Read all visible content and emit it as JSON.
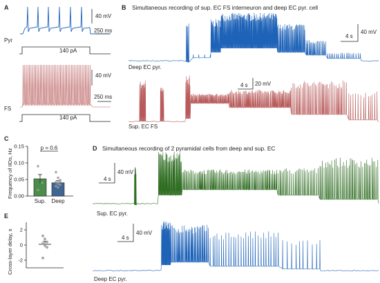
{
  "colors": {
    "blue": "#1f63b8",
    "pink": "#b85a5a",
    "green": "#2f6d22",
    "bar_sup": "#4c8d4c",
    "bar_deep": "#3f6693",
    "dot": "#9a9a9a",
    "axis": "#222222"
  },
  "panels": {
    "A": {
      "letter": "A",
      "pyr_label": "Pyr",
      "fs_label": "FS",
      "stim_pyr": "140 pA",
      "stim_fs": "140 pA",
      "scale_pyr_v": "40 mV",
      "scale_pyr_t": "250 ms",
      "scale_fs_v": "40 mV",
      "scale_fs_t": "250 ms"
    },
    "B": {
      "letter": "B",
      "title": "Simultaneous recording of sup. EC FS interneuron and deep EC pyr. cell",
      "deep_label": "Deep EC pyr.",
      "sup_label": "Sup. EC FS",
      "scale1_v": "40 mV",
      "scale1_t": "4 s",
      "scale2_v": "20 mV",
      "scale2_t": "4 s"
    },
    "C": {
      "letter": "C",
      "ylabel": "Frequency of IIDs, Hz",
      "p_text": "p = 0.6"
    },
    "D": {
      "letter": "D",
      "title": "Simultaneous recording of 2 pyramidal cells from deep and sup. EC",
      "sup_label": "Sup. EC pyr.",
      "deep_label": "Deep EC pyr.",
      "scale1_v": "40 mV",
      "scale1_t": "4 s",
      "scale2_v": "40 mV",
      "scale2_t": "4 s"
    },
    "E": {
      "letter": "E",
      "ylabel": "Cross-layer delay, s"
    }
  },
  "chart_data": [
    {
      "type": "bar",
      "panel": "C",
      "categories": [
        "Sup.",
        "Deep"
      ],
      "values": [
        0.052,
        0.04
      ],
      "errors": [
        0.014,
        0.007
      ],
      "ylabel": "Frequency of IIDs, Hz",
      "ylim": [
        0,
        0.15
      ],
      "yticks": [
        "0.00",
        "0.05",
        "0.10",
        "0.15"
      ],
      "points": [
        [
          0.09,
          0.063,
          0.04,
          0.018
        ],
        [
          0.072,
          0.055,
          0.048,
          0.042,
          0.037,
          0.034,
          0.03,
          0.026,
          0.045
        ]
      ],
      "annotation": "p = 0.6"
    },
    {
      "type": "scatter",
      "panel": "E",
      "categories": [
        ""
      ],
      "mean": 0.1,
      "sem": 0.4,
      "ylabel": "Cross-layer delay, s",
      "ylim": [
        -3,
        3
      ],
      "yticks": [
        "2",
        "0",
        "-2"
      ],
      "points": [
        1.2,
        0.8,
        0.4,
        0.2,
        0.0,
        -0.3,
        -1.7
      ]
    }
  ]
}
